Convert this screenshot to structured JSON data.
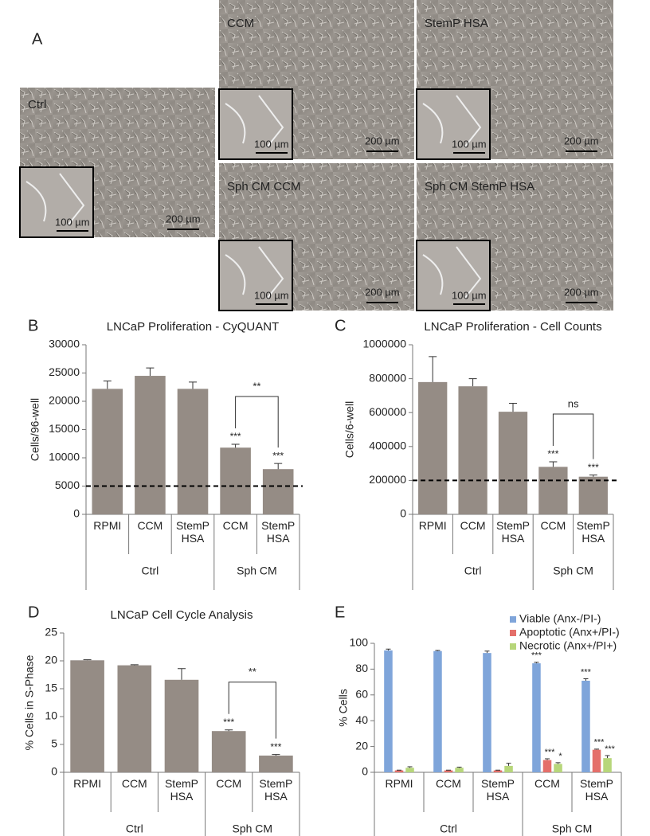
{
  "panel_a": {
    "label": "A",
    "images": [
      {
        "label": "Ctrl",
        "scale_bar": "200 µm",
        "inset_scale_bar": "100 µm"
      },
      {
        "label": "CCM",
        "scale_bar": "200 µm",
        "inset_scale_bar": "100 µm"
      },
      {
        "label": "StemP HSA",
        "scale_bar": "200 µm",
        "inset_scale_bar": "100 µm"
      },
      {
        "label": "Sph CM CCM",
        "scale_bar": "200 µm",
        "inset_scale_bar": "100 µm"
      },
      {
        "label": "Sph CM StemP HSA",
        "scale_bar": "200 µm",
        "inset_scale_bar": "100 µm"
      }
    ]
  },
  "chart_data": [
    {
      "type": "bar",
      "label": "B",
      "title": "LNCaP Proliferation - CyQUANT",
      "y_label": "Cells/96-well",
      "groups": [
        {
          "name": "Ctrl",
          "categories": [
            "RPMI",
            "CCM",
            "StemP HSA"
          ]
        },
        {
          "name": "Sph CM",
          "categories": [
            "CCM",
            "StemP HSA"
          ]
        }
      ],
      "values": [
        22200,
        24500,
        22200,
        11800,
        8000
      ],
      "errors": [
        1400,
        1400,
        1200,
        600,
        1000
      ],
      "annotations": [
        null,
        null,
        null,
        "***",
        "***"
      ],
      "bracket": {
        "label": "**",
        "from": 3,
        "to": 4
      },
      "color": "#958c85",
      "reference_line": 5000,
      "ylim": [
        0,
        30000
      ],
      "yticks": [
        0,
        5000,
        10000,
        15000,
        20000,
        25000,
        30000
      ]
    },
    {
      "type": "bar",
      "label": "C",
      "title": "LNCaP Proliferation - Cell Counts",
      "y_label": "Cells/6-well",
      "groups": [
        {
          "name": "Ctrl",
          "categories": [
            "RPMI",
            "CCM",
            "StemP HSA"
          ]
        },
        {
          "name": "Sph CM",
          "categories": [
            "CCM",
            "StemP HSA"
          ]
        }
      ],
      "values": [
        780000,
        755000,
        605000,
        280000,
        222000
      ],
      "errors": [
        150000,
        45000,
        50000,
        30000,
        10000
      ],
      "annotations": [
        null,
        null,
        null,
        "***",
        "***"
      ],
      "bracket": {
        "label": "ns",
        "from": 3,
        "to": 4
      },
      "color": "#958c85",
      "reference_line": 200000,
      "ylim": [
        0,
        1000000
      ],
      "yticks": [
        0,
        200000,
        400000,
        600000,
        800000,
        1000000
      ]
    },
    {
      "type": "bar",
      "label": "D",
      "title": "LNCaP Cell Cycle Analysis",
      "y_label": "% Cells in S-Phase",
      "groups": [
        {
          "name": "Ctrl",
          "categories": [
            "RPMI",
            "CCM",
            "StemP HSA"
          ]
        },
        {
          "name": "Sph CM",
          "categories": [
            "CCM",
            "StemP HSA"
          ]
        }
      ],
      "values": [
        20.1,
        19.2,
        16.6,
        7.4,
        3.0
      ],
      "errors": [
        0.1,
        0.1,
        2.0,
        0.2,
        0.2
      ],
      "annotations": [
        null,
        null,
        null,
        "***",
        "***"
      ],
      "bracket": {
        "label": "**",
        "from": 3,
        "to": 4
      },
      "color": "#958c85",
      "ylim": [
        0,
        25
      ],
      "yticks": [
        0,
        5,
        10,
        15,
        20,
        25
      ]
    },
    {
      "type": "grouped_bar",
      "label": "E",
      "y_label": "% Cells",
      "legend": "upper right",
      "groups": [
        {
          "name": "Ctrl",
          "categories": [
            "RPMI",
            "CCM",
            "StemP HSA"
          ]
        },
        {
          "name": "Sph CM",
          "categories": [
            "CCM",
            "StemP HSA"
          ]
        }
      ],
      "series": [
        {
          "name": "Viable (Anx-/PI-)",
          "color": "#7fa5da",
          "values": [
            94.5,
            94,
            92.5,
            84.5,
            71
          ],
          "errors": [
            1,
            0.5,
            1.5,
            0.8,
            1.5
          ],
          "annotations": [
            null,
            null,
            null,
            "***",
            "***"
          ]
        },
        {
          "name": "Apoptotic (Anx+/PI-)",
          "color": "#e46f6a",
          "values": [
            1.5,
            1.5,
            1.5,
            9.5,
            17.5
          ],
          "errors": [
            0.2,
            0.2,
            0.2,
            1,
            0.5
          ],
          "annotations": [
            null,
            null,
            null,
            "***",
            "***"
          ]
        },
        {
          "name": "Necrotic (Anx+/PI+)",
          "color": "#b7d67a",
          "values": [
            3.5,
            3.5,
            5,
            6.5,
            11
          ],
          "errors": [
            0.8,
            0.5,
            2,
            1,
            2
          ],
          "annotations": [
            null,
            null,
            null,
            "*",
            "***"
          ]
        }
      ],
      "ylim": [
        0,
        100
      ],
      "yticks": [
        0,
        20,
        40,
        60,
        80,
        100
      ]
    }
  ]
}
